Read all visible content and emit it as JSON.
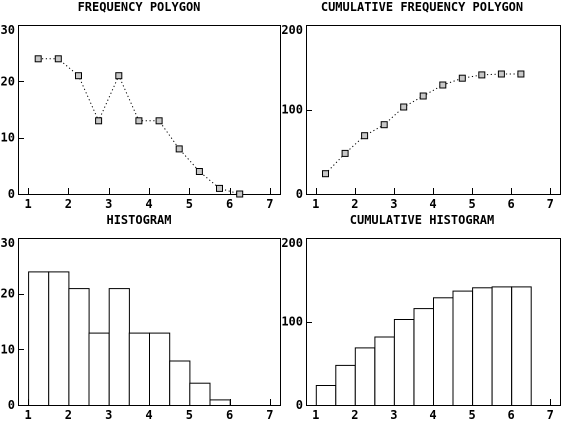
{
  "chart_data": [
    {
      "id": "freq-polygon",
      "type": "line",
      "title": "FREQUENCY POLYGON",
      "xlabel": "",
      "ylabel": "",
      "xlim": [
        0.75,
        7.25
      ],
      "ylim": [
        0,
        30
      ],
      "xticks": [
        1,
        2,
        3,
        4,
        5,
        6,
        7
      ],
      "yticks": [
        0,
        10,
        20,
        30
      ],
      "line_style": "dotted",
      "marker": "square",
      "x": [
        1.25,
        1.75,
        2.25,
        2.75,
        3.25,
        3.75,
        4.25,
        4.75,
        5.25,
        5.75,
        6.25
      ],
      "values": [
        24,
        24,
        21,
        13,
        21,
        13,
        13,
        8,
        4,
        1,
        0
      ]
    },
    {
      "id": "cum-freq-polygon",
      "type": "line",
      "title": "CUMULATIVE FREQUENCY POLYGON",
      "xlabel": "",
      "ylabel": "",
      "xlim": [
        0.75,
        7.25
      ],
      "ylim": [
        0,
        200
      ],
      "xticks": [
        1,
        2,
        3,
        4,
        5,
        6,
        7
      ],
      "yticks": [
        0,
        100,
        200
      ],
      "line_style": "dotted",
      "marker": "square",
      "x": [
        1.25,
        1.75,
        2.25,
        2.75,
        3.25,
        3.75,
        4.25,
        4.75,
        5.25,
        5.75,
        6.25
      ],
      "values": [
        24,
        48,
        69,
        82,
        103,
        116,
        129,
        137,
        141,
        142,
        142
      ]
    },
    {
      "id": "histogram",
      "type": "bar",
      "title": "HISTOGRAM",
      "xlabel": "",
      "ylabel": "",
      "xlim": [
        0.75,
        7.25
      ],
      "ylim": [
        0,
        30
      ],
      "xticks": [
        1,
        2,
        3,
        4,
        5,
        6,
        7
      ],
      "yticks": [
        0,
        10,
        20,
        30
      ],
      "bin_edges": [
        1,
        1.5,
        2,
        2.5,
        3,
        3.5,
        4,
        4.5,
        5,
        5.5,
        6,
        6.5
      ],
      "values": [
        24,
        24,
        21,
        13,
        21,
        13,
        13,
        8,
        4,
        1,
        0
      ]
    },
    {
      "id": "cum-histogram",
      "type": "bar",
      "title": "CUMULATIVE HISTOGRAM",
      "xlabel": "",
      "ylabel": "",
      "xlim": [
        0.75,
        7.25
      ],
      "ylim": [
        0,
        200
      ],
      "xticks": [
        1,
        2,
        3,
        4,
        5,
        6,
        7
      ],
      "yticks": [
        0,
        100,
        200
      ],
      "bin_edges": [
        1,
        1.5,
        2,
        2.5,
        3,
        3.5,
        4,
        4.5,
        5,
        5.5,
        6,
        6.5
      ],
      "values": [
        24,
        48,
        69,
        82,
        103,
        116,
        129,
        137,
        141,
        142,
        142
      ]
    }
  ]
}
